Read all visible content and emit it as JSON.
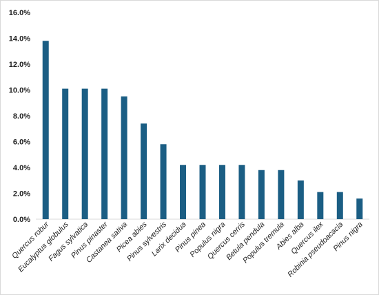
{
  "chart_data": {
    "type": "bar",
    "title": "",
    "xlabel": "",
    "ylabel": "",
    "categories": [
      "Quercus robur",
      "Eucalyptus globulus",
      "Fagus sylvatica",
      "Pinus pinaster",
      "Castanea sativa",
      "Picea abies",
      "Pinus sylvestris",
      "Larix decidua",
      "Pinus pinea",
      "Populus nigra",
      "Quercus cerris",
      "Betula pendula",
      "Populus tremula",
      "Abies alba",
      "Quercus ilex",
      "Robinia pseudoacacia",
      "Pinus nigra"
    ],
    "values": [
      13.8,
      10.1,
      10.1,
      10.1,
      9.5,
      7.4,
      5.8,
      4.2,
      4.2,
      4.2,
      4.2,
      3.8,
      3.8,
      3.0,
      2.1,
      2.1,
      1.6
    ],
    "ylim": [
      0,
      16
    ],
    "yticks": [
      "0.0%",
      "2.0%",
      "4.0%",
      "6.0%",
      "8.0%",
      "10.0%",
      "12.0%",
      "14.0%",
      "16.0%"
    ],
    "grid": false,
    "legend": false,
    "bar_color": "#1b5e84"
  }
}
